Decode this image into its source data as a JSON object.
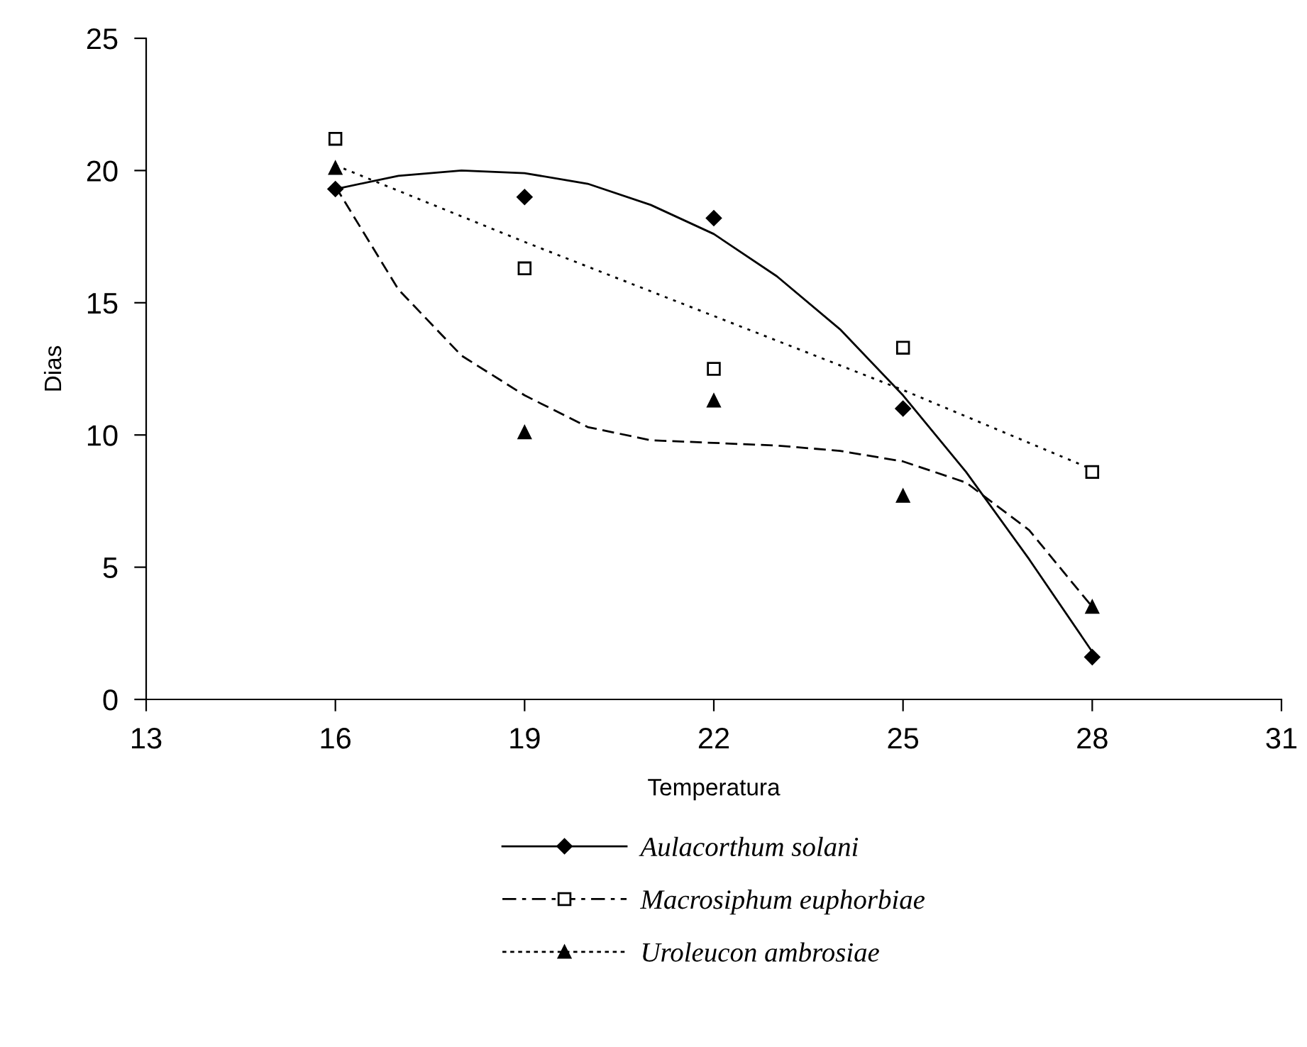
{
  "chart_data": {
    "type": "scatter",
    "xlabel": "Temperatura",
    "ylabel": "Dias",
    "xlim": [
      13,
      31
    ],
    "xticks": [
      13,
      16,
      19,
      22,
      25,
      28,
      31
    ],
    "ylim": [
      0,
      25
    ],
    "yticks": [
      0,
      5,
      10,
      15,
      20,
      25
    ],
    "grid": false,
    "legend": "bottom",
    "series": [
      {
        "name": "Aulacorthum solani",
        "marker": "diamond",
        "color": "#000000",
        "line_style": "solid",
        "x": [
          16,
          19,
          22,
          25,
          28
        ],
        "values": [
          19.3,
          19.0,
          18.2,
          11.0,
          1.6
        ]
      },
      {
        "name": "Macrosiphum euphorbiae",
        "marker": "square",
        "color": "#000000",
        "line_style": "dashed",
        "x": [
          16,
          19,
          22,
          25,
          28
        ],
        "values": [
          21.2,
          16.3,
          12.5,
          13.3,
          8.6
        ]
      },
      {
        "name": "Uroleucon ambrosiae",
        "marker": "triangle",
        "color": "#000000",
        "line_style": "dotted",
        "x": [
          16,
          19,
          22,
          25,
          28
        ],
        "values": [
          20.1,
          10.1,
          11.3,
          7.7,
          3.5
        ]
      },
      {
        "type": "line",
        "line_style": "solid",
        "color": "#000000",
        "x": [
          16,
          17,
          18,
          19,
          20,
          21,
          22,
          23,
          24,
          25,
          26,
          27,
          28
        ],
        "values": [
          19.3,
          19.8,
          20.0,
          19.9,
          19.5,
          18.7,
          17.6,
          16.0,
          14.0,
          11.5,
          8.6,
          5.3,
          1.8
        ]
      },
      {
        "type": "line",
        "line_style": "dotted",
        "color": "#000000",
        "x": [
          16,
          19,
          22,
          25,
          28
        ],
        "values": [
          20.2,
          17.3,
          14.5,
          11.7,
          8.7
        ]
      },
      {
        "type": "line",
        "line_style": "dashed",
        "color": "#000000",
        "x": [
          16,
          17,
          18,
          19,
          20,
          21,
          22,
          23,
          24,
          25,
          26,
          27,
          28
        ],
        "values": [
          19.4,
          15.5,
          13.0,
          11.5,
          10.3,
          9.8,
          9.7,
          9.6,
          9.4,
          9.0,
          8.2,
          6.4,
          3.5
        ]
      }
    ]
  }
}
